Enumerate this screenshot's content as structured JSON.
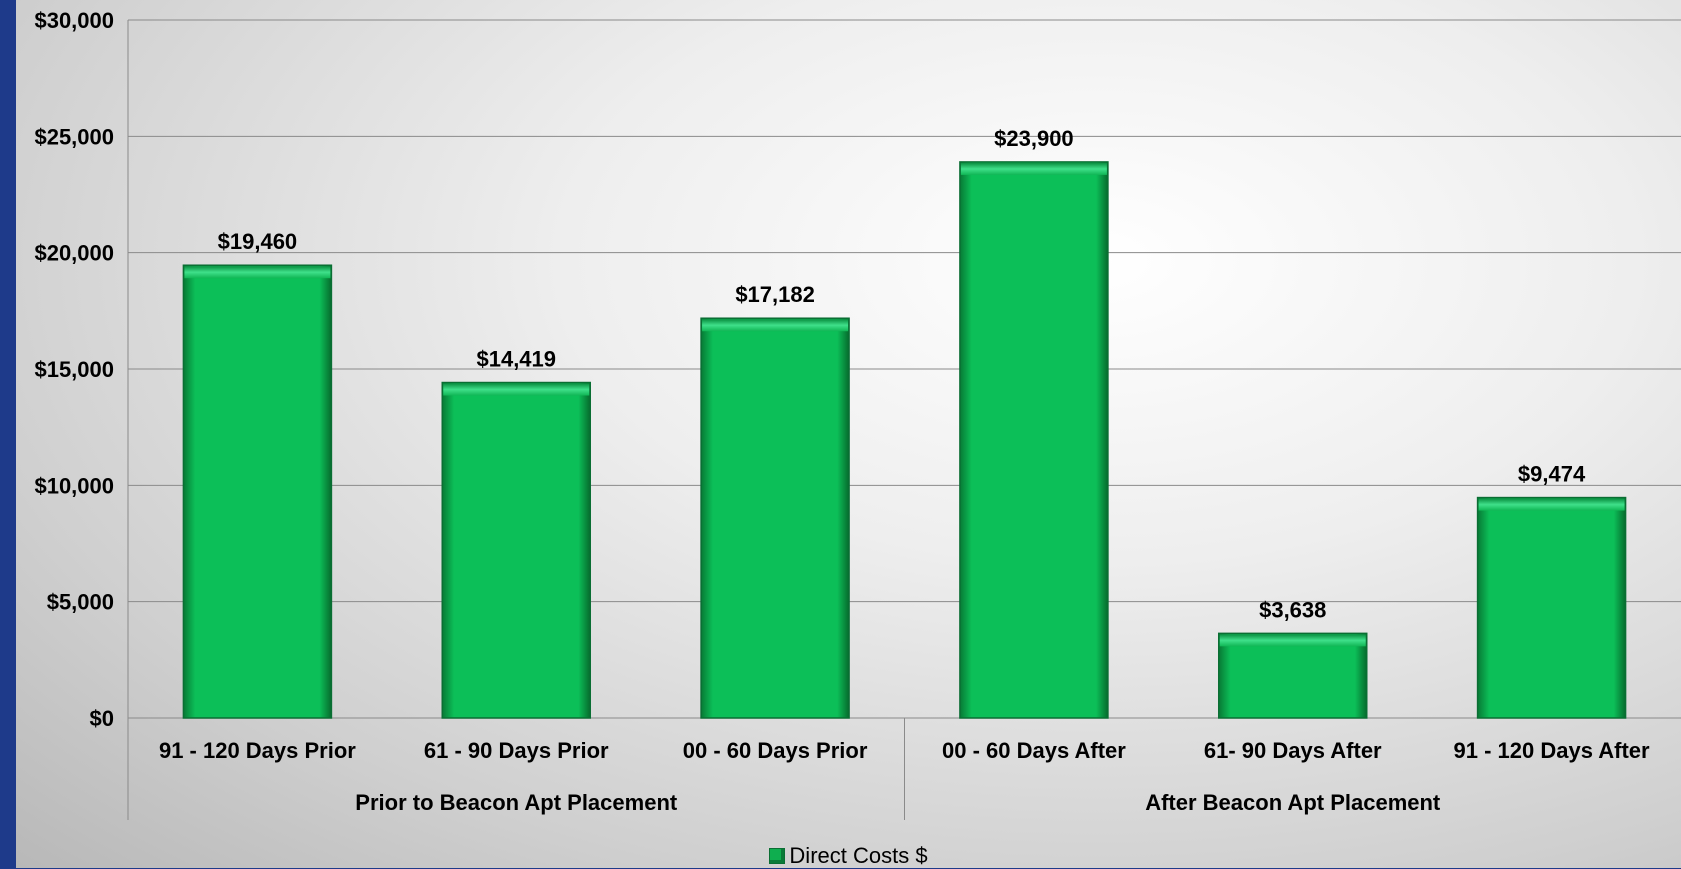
{
  "chart_data": {
    "type": "bar",
    "categories": [
      "91 - 120 Days Prior",
      "61 - 90 Days Prior",
      "00 - 60 Days Prior",
      "00 - 60 Days After",
      "61- 90 Days After",
      "91 - 120 Days After"
    ],
    "groups": [
      {
        "label": "Prior to Beacon Apt Placement",
        "categories": [
          0,
          1,
          2
        ]
      },
      {
        "label": "After Beacon Apt Placement",
        "categories": [
          3,
          4,
          5
        ]
      }
    ],
    "series": [
      {
        "name": "Direct Costs $",
        "values": [
          19460,
          14419,
          17182,
          23900,
          3638,
          9474
        ]
      }
    ],
    "data_labels": [
      "$19,460",
      "$14,419",
      "$17,182",
      "$23,900",
      "$3,638",
      "$9,474"
    ],
    "yticks": [
      0,
      5000,
      10000,
      15000,
      20000,
      25000,
      30000
    ],
    "ytick_labels": [
      "$0",
      "$5,000",
      "$10,000",
      "$15,000",
      "$20,000",
      "$25,000",
      "$30,000"
    ],
    "ylim": [
      0,
      30000
    ],
    "grid": true,
    "legend_position": "bottom",
    "bar_color": "#0fbf5a",
    "bar_edge_color": "#0a6e33"
  }
}
